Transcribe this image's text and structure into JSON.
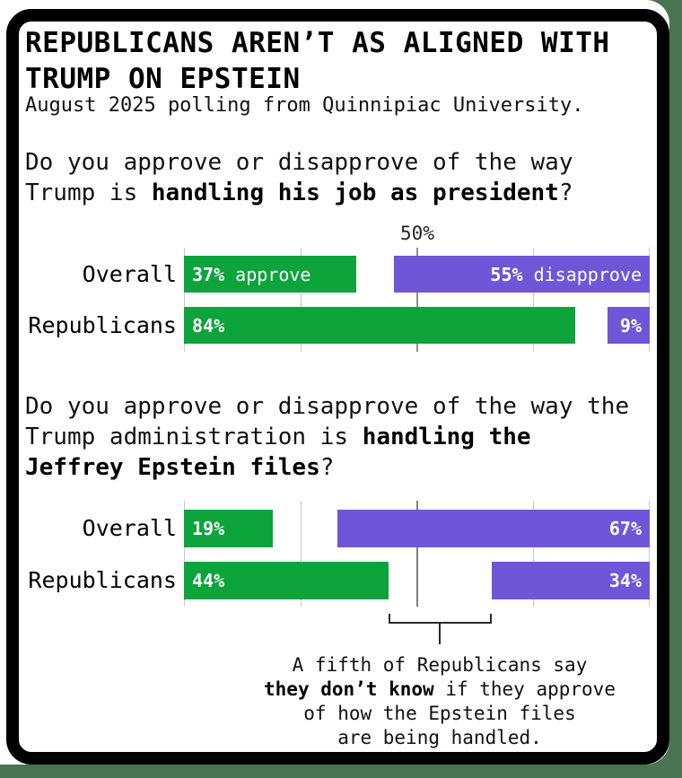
{
  "canvas": {
    "page_background": "#4a7351",
    "card_background": "#ffffff",
    "frame_color": "#000000"
  },
  "colors": {
    "approve_green": "#0ea43c",
    "disapprove_purple": "#6f56d8",
    "gridline_light": "#c9c9c9",
    "gridline_center": "#8f8f8f",
    "bracket": "#2a2a2a"
  },
  "header": {
    "title_line1": "REPUBLICANS AREN’T AS ALIGNED WITH",
    "title_line2": "TRUMP ON EPSTEIN",
    "subtitle": "August 2025 polling from Quinnipiac University."
  },
  "chart_data": [
    {
      "type": "bar",
      "question": {
        "line1": "Do you approve or disapprove of the way",
        "line2_pre": "Trump is ",
        "line2_bold": "handling his job as president",
        "line2_post": "?"
      },
      "axis": {
        "xlim": [
          0,
          100
        ],
        "gridlines_pct": [
          0,
          25,
          50,
          75,
          100
        ],
        "center_label": "50%"
      },
      "categories": [
        "Overall",
        "Republicans"
      ],
      "series": [
        {
          "name": "approve",
          "color": "#0ea43c",
          "values": [
            37,
            84
          ]
        },
        {
          "name": "disapprove",
          "color": "#6f56d8",
          "values": [
            55,
            9
          ]
        }
      ],
      "bar_labels": {
        "overall_approve_pct": "37%",
        "overall_approve_suffix": " approve",
        "overall_disapprove_pct": "55%",
        "overall_disapprove_suffix": " disapprove",
        "republicans_approve_pct": "84%",
        "republicans_disapprove_pct": "9%"
      }
    },
    {
      "type": "bar",
      "question": {
        "line1": "Do you approve or disapprove of the way the",
        "line2_pre": "Trump administration is ",
        "line2_bold": "handling the",
        "line3_bold": "Jeffrey Epstein files",
        "line3_post": "?"
      },
      "axis": {
        "xlim": [
          0,
          100
        ],
        "gridlines_pct": [
          0,
          25,
          50,
          75,
          100
        ]
      },
      "categories": [
        "Overall",
        "Republicans"
      ],
      "series": [
        {
          "name": "approve",
          "color": "#0ea43c",
          "values": [
            19,
            44
          ]
        },
        {
          "name": "disapprove",
          "color": "#6f56d8",
          "values": [
            67,
            34
          ]
        }
      ],
      "bar_labels": {
        "overall_approve_pct": "19%",
        "overall_disapprove_pct": "67%",
        "republicans_approve_pct": "44%",
        "republicans_disapprove_pct": "34%"
      },
      "annotation": {
        "bracket_from_pct": 44,
        "bracket_to_pct": 66,
        "line1": "A fifth of Republicans say",
        "line2_bold": "they don’t know",
        "line2_rest": " if they approve",
        "line3": "of how the Epstein files",
        "line4": "are being handled."
      }
    }
  ]
}
